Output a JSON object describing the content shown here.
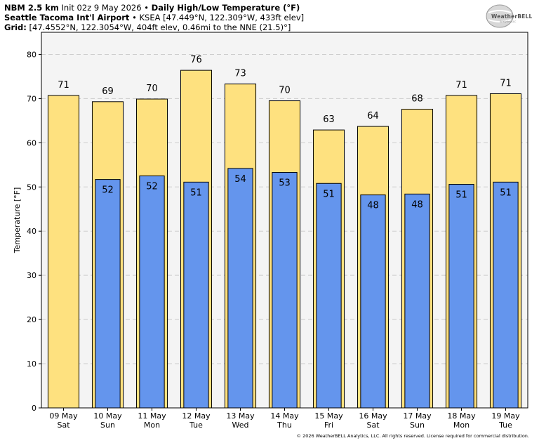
{
  "header": {
    "model": "NBM 2.5 km",
    "init": "Init 02z 9 May 2026",
    "bullet": "•",
    "product": "Daily High/Low Temperature (°F)",
    "station_name": "Seattle Tacoma Int'l Airport",
    "station_info": "• KSEA [47.449°N, 122.309°W, 433ft elev]",
    "grid_label": "Grid:",
    "grid_info": "[47.4552°N, 122.3054°W, 404ft elev, 0.46mi to the NNE (21.5)°]"
  },
  "logo": {
    "text": "WeatherBELL",
    "subtext": "Analytics LLC"
  },
  "footer": {
    "copyright": "© 2026 WeatherBELL Analytics, LLC. All rights reserved. License required for commercial distribution."
  },
  "colors": {
    "high_bar": "#fee17f",
    "low_bar": "#6495ed",
    "plot_bg": "#f4f4f4",
    "grid": "#cccccc"
  },
  "chart_data": {
    "type": "bar",
    "ylabel": "Temperature [°F]",
    "ylim": [
      0,
      85
    ],
    "yticks": [
      0,
      10,
      20,
      30,
      40,
      50,
      60,
      70,
      80
    ],
    "grid": true,
    "categories": [
      {
        "date": "09 May",
        "day": "Sat"
      },
      {
        "date": "10 May",
        "day": "Sun"
      },
      {
        "date": "11 May",
        "day": "Mon"
      },
      {
        "date": "12 May",
        "day": "Tue"
      },
      {
        "date": "13 May",
        "day": "Wed"
      },
      {
        "date": "14 May",
        "day": "Thu"
      },
      {
        "date": "15 May",
        "day": "Fri"
      },
      {
        "date": "16 May",
        "day": "Sat"
      },
      {
        "date": "17 May",
        "day": "Sun"
      },
      {
        "date": "18 May",
        "day": "Mon"
      },
      {
        "date": "19 May",
        "day": "Tue"
      }
    ],
    "series": [
      {
        "key": "high",
        "values": [
          70.7,
          69.3,
          69.9,
          76.4,
          73.3,
          69.5,
          62.9,
          63.7,
          67.6,
          70.7,
          71.1
        ],
        "labels": [
          "71",
          "69",
          "70",
          "76",
          "73",
          "70",
          "63",
          "64",
          "68",
          "71",
          "71"
        ]
      },
      {
        "key": "low",
        "values": [
          null,
          51.7,
          52.5,
          51.1,
          54.2,
          53.3,
          50.8,
          48.2,
          48.4,
          50.6,
          51.1
        ],
        "labels": [
          null,
          "52",
          "52",
          "51",
          "54",
          "53",
          "51",
          "48",
          "48",
          "51",
          "51"
        ]
      }
    ]
  }
}
